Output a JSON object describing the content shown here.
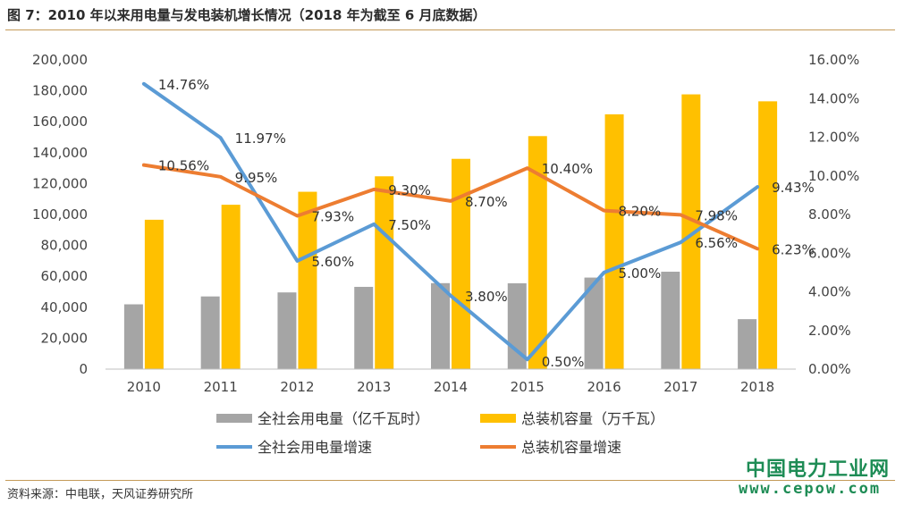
{
  "figure": {
    "title": "图 7：2010 年以来用电量与发电装机增长情况（2018 年为截至 6 月底数据）",
    "source": "资料来源：中电联，天风证券研究所",
    "watermark_cn": "中国电力工业网",
    "watermark_url": "www.cepow.com"
  },
  "chart_data": {
    "type": "bar",
    "categories": [
      "2010",
      "2011",
      "2012",
      "2013",
      "2014",
      "2015",
      "2016",
      "2017",
      "2018"
    ],
    "left_axis": {
      "min": 0,
      "max": 200000,
      "ticks": [
        "0",
        "20,000",
        "40,000",
        "60,000",
        "80,000",
        "100,000",
        "120,000",
        "140,000",
        "160,000",
        "180,000",
        "200,000"
      ]
    },
    "right_axis": {
      "min": 0,
      "max": 16,
      "ticks": [
        "0.00%",
        "2.00%",
        "4.00%",
        "6.00%",
        "8.00%",
        "10.00%",
        "12.00%",
        "14.00%",
        "16.00%"
      ]
    },
    "grid": false,
    "legend_position": "bottom",
    "series": [
      {
        "name": "全社会用电量（亿千瓦时）",
        "type": "bar",
        "axis": "left",
        "color": "#a5a5a5",
        "values": [
          41900,
          47000,
          49600,
          53200,
          55600,
          55500,
          59200,
          63000,
          32300
        ]
      },
      {
        "name": "总装机容量（万千瓦）",
        "type": "bar",
        "axis": "left",
        "color": "#ffc000",
        "values": [
          96600,
          106300,
          114700,
          124700,
          136000,
          150700,
          164800,
          177700,
          173200
        ]
      },
      {
        "name": "全社会用电量增速",
        "type": "line",
        "axis": "right",
        "color": "#5b9bd5",
        "values": [
          14.76,
          11.97,
          5.6,
          7.5,
          3.8,
          0.5,
          5.0,
          6.56,
          9.43
        ],
        "labels": [
          "14.76%",
          "11.97%",
          "5.60%",
          "7.50%",
          "3.80%",
          "0.50%",
          "5.00%",
          "6.56%",
          "9.43%"
        ]
      },
      {
        "name": "总装机容量增速",
        "type": "line",
        "axis": "right",
        "color": "#ed7d31",
        "values": [
          10.56,
          9.95,
          7.93,
          9.3,
          8.7,
          10.4,
          8.2,
          7.98,
          6.23
        ],
        "labels": [
          "10.56%",
          "9.95%",
          "7.93%",
          "9.30%",
          "8.70%",
          "10.40%",
          "8.20%",
          "7.98%",
          "6.23%"
        ]
      }
    ]
  }
}
